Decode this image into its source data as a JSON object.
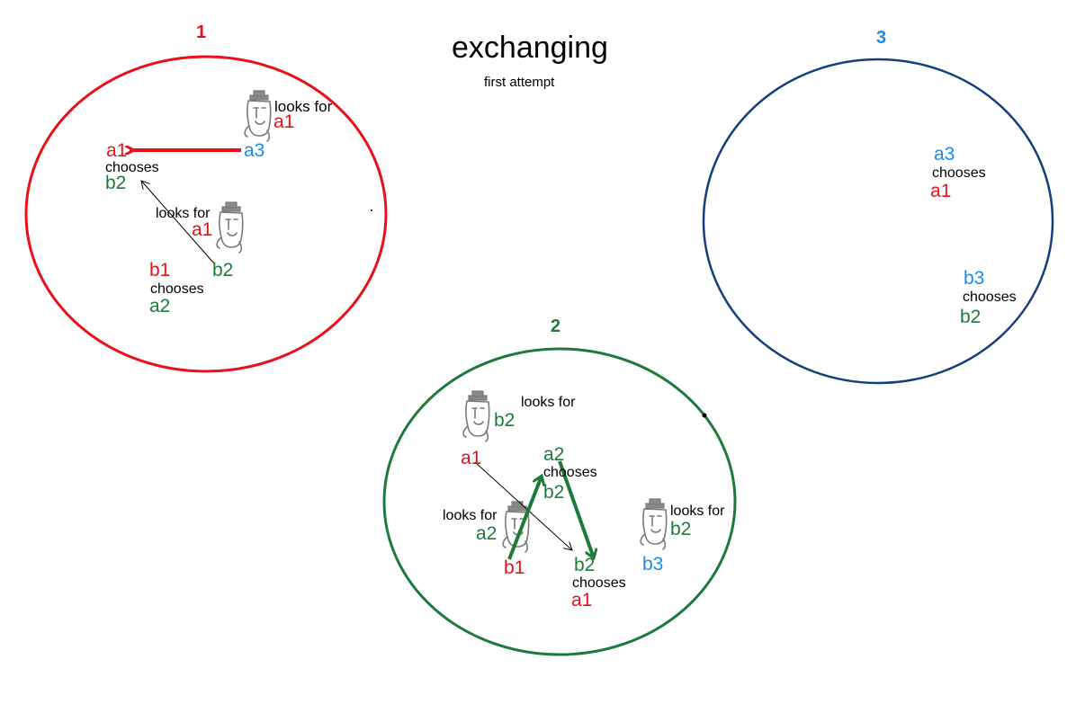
{
  "title": "exchanging",
  "subtitle": "first attempt",
  "colors": {
    "red": "#e8101a",
    "green": "#1e7a3a",
    "blue": "#1a8ae8",
    "navy": "#143f7a",
    "gray": "#7a7a7a"
  },
  "icons": [
    "person-with-hat-icon"
  ],
  "groups": [
    {
      "number": "1",
      "texts": {
        "looks_for_top": "looks for",
        "a1_top": "a1",
        "a3": "a3",
        "a1_left": "a1",
        "chooses_1": "chooses",
        "b2_left": "b2",
        "looks_for_mid": "looks for",
        "a1_mid": "a1",
        "b1": "b1",
        "b2_mid": "b2",
        "chooses_2": "chooses",
        "a2": "a2"
      }
    },
    {
      "number": "2",
      "texts": {
        "looks_for_top": "looks for",
        "b2_top": "b2",
        "a1_top": "a1",
        "a2": "a2",
        "chooses_1": "chooses",
        "b2_center": "b2",
        "looks_for_left": "looks for",
        "a2_left": "a2",
        "b1": "b1",
        "b2_bottom": "b2",
        "chooses_2": "chooses",
        "a1_bottom": "a1",
        "b3": "b3",
        "looks_for_right": "looks for",
        "b2_right": "b2"
      }
    },
    {
      "number": "3",
      "texts": {
        "a3": "a3",
        "chooses_1": "chooses",
        "a1": "a1",
        "b3": "b3",
        "chooses_2": "chooses",
        "b2": "b2"
      }
    }
  ]
}
